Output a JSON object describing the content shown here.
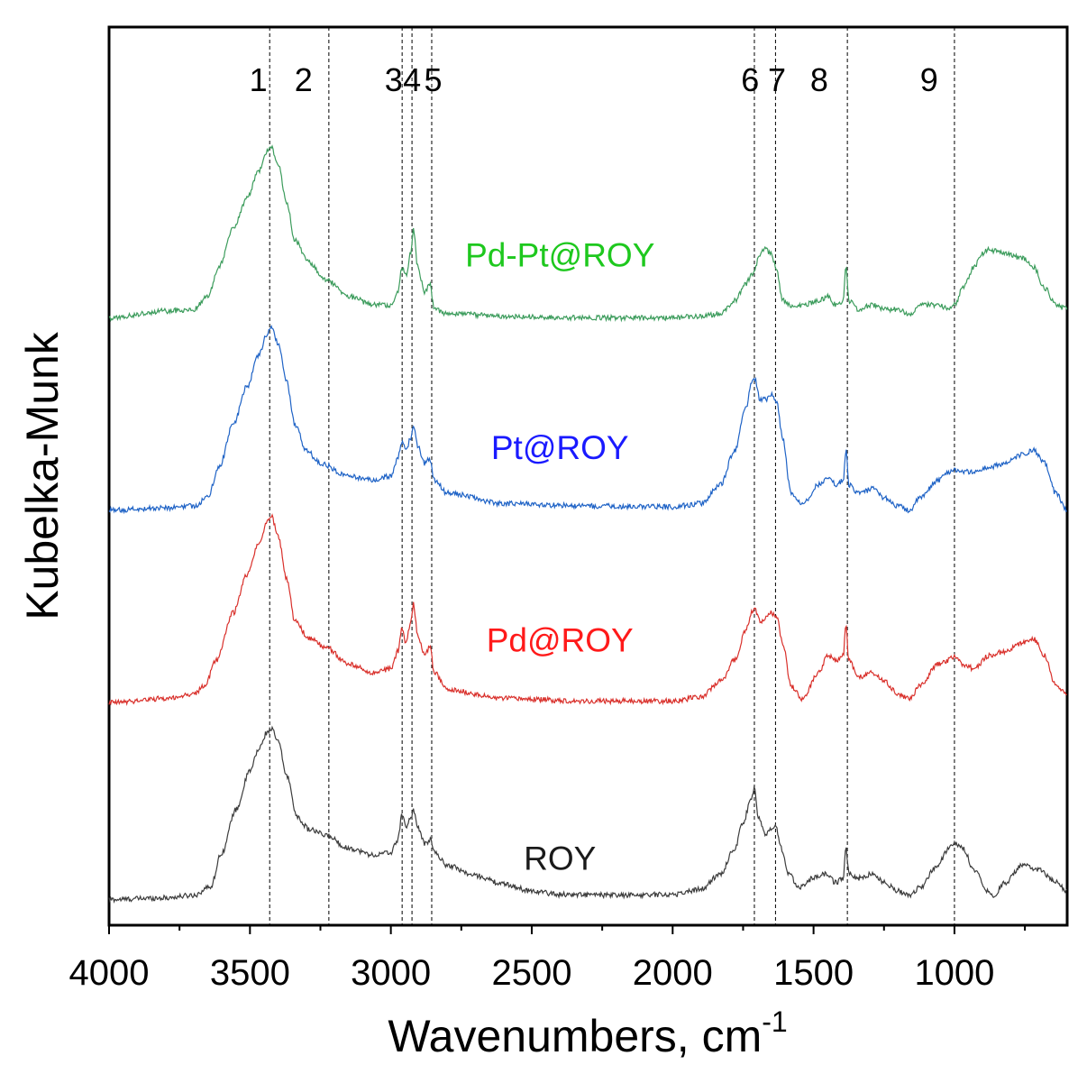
{
  "chart_data": {
    "type": "line",
    "title": "",
    "xlabel": "Wavenumbers, cm",
    "xlabel_superscript": "-1",
    "ylabel": "Kubelka-Munk",
    "xlim": [
      4000,
      600
    ],
    "x_reversed": true,
    "y_ticks": false,
    "xticks": [
      4000,
      3500,
      3000,
      2500,
      2000,
      1500,
      1000
    ],
    "xtick_labels": [
      "4000",
      "3500",
      "3000",
      "2500",
      "2000",
      "1500",
      "1000"
    ],
    "reference_lines": [
      {
        "label": "1",
        "x": 3430
      },
      {
        "label": "2",
        "x": 3220
      },
      {
        "label": "3",
        "x": 2960
      },
      {
        "label": "4",
        "x": 2925
      },
      {
        "label": "5",
        "x": 2855
      },
      {
        "label": "6",
        "x": 1710
      },
      {
        "label": "7",
        "x": 1635
      },
      {
        "label": "8",
        "x": 1380
      },
      {
        "label": "9",
        "x": 1000
      }
    ],
    "reference_label_x": {
      "1": 3470,
      "2": 3310,
      "3": 2990,
      "4": 2925,
      "5": 2850,
      "6": 1725,
      "7": 1630,
      "8": 1480,
      "9": 1090
    },
    "ylim": [
      0,
      10.5
    ],
    "series": [
      {
        "name": "ROY",
        "color": "#3c3c3c",
        "offset": 0.3,
        "points": [
          [
            4000,
            0.0
          ],
          [
            3800,
            0.02
          ],
          [
            3700,
            0.05
          ],
          [
            3640,
            0.15
          ],
          [
            3600,
            0.55
          ],
          [
            3550,
            1.05
          ],
          [
            3500,
            1.5
          ],
          [
            3470,
            1.75
          ],
          [
            3440,
            1.95
          ],
          [
            3425,
            2.0
          ],
          [
            3400,
            1.85
          ],
          [
            3370,
            1.45
          ],
          [
            3330,
            0.95
          ],
          [
            3290,
            0.82
          ],
          [
            3230,
            0.75
          ],
          [
            3150,
            0.6
          ],
          [
            3060,
            0.52
          ],
          [
            3000,
            0.55
          ],
          [
            2975,
            0.7
          ],
          [
            2960,
            1.0
          ],
          [
            2945,
            0.85
          ],
          [
            2930,
            0.95
          ],
          [
            2920,
            1.05
          ],
          [
            2905,
            0.85
          ],
          [
            2880,
            0.65
          ],
          [
            2860,
            0.7
          ],
          [
            2845,
            0.55
          ],
          [
            2800,
            0.4
          ],
          [
            2700,
            0.28
          ],
          [
            2600,
            0.18
          ],
          [
            2500,
            0.1
          ],
          [
            2400,
            0.06
          ],
          [
            2200,
            0.05
          ],
          [
            2000,
            0.06
          ],
          [
            1900,
            0.12
          ],
          [
            1830,
            0.3
          ],
          [
            1780,
            0.6
          ],
          [
            1750,
            0.9
          ],
          [
            1720,
            1.2
          ],
          [
            1710,
            1.3
          ],
          [
            1695,
            0.95
          ],
          [
            1670,
            0.75
          ],
          [
            1650,
            0.82
          ],
          [
            1635,
            0.85
          ],
          [
            1615,
            0.6
          ],
          [
            1590,
            0.3
          ],
          [
            1550,
            0.15
          ],
          [
            1500,
            0.25
          ],
          [
            1460,
            0.3
          ],
          [
            1420,
            0.2
          ],
          [
            1395,
            0.25
          ],
          [
            1385,
            0.6
          ],
          [
            1375,
            0.3
          ],
          [
            1340,
            0.25
          ],
          [
            1290,
            0.3
          ],
          [
            1250,
            0.2
          ],
          [
            1200,
            0.1
          ],
          [
            1160,
            0.05
          ],
          [
            1120,
            0.15
          ],
          [
            1060,
            0.4
          ],
          [
            1020,
            0.6
          ],
          [
            1000,
            0.65
          ],
          [
            970,
            0.6
          ],
          [
            930,
            0.35
          ],
          [
            880,
            0.1
          ],
          [
            860,
            0.05
          ],
          [
            820,
            0.2
          ],
          [
            760,
            0.4
          ],
          [
            700,
            0.35
          ],
          [
            640,
            0.2
          ],
          [
            600,
            0.1
          ]
        ]
      },
      {
        "name": "Pd@ROY",
        "color": "#d9302b",
        "offset": 2.6,
        "points": [
          [
            4000,
            0.0
          ],
          [
            3800,
            0.05
          ],
          [
            3700,
            0.1
          ],
          [
            3660,
            0.2
          ],
          [
            3620,
            0.5
          ],
          [
            3560,
            1.05
          ],
          [
            3510,
            1.5
          ],
          [
            3470,
            1.85
          ],
          [
            3440,
            2.1
          ],
          [
            3425,
            2.2
          ],
          [
            3400,
            1.95
          ],
          [
            3370,
            1.45
          ],
          [
            3340,
            0.95
          ],
          [
            3290,
            0.75
          ],
          [
            3230,
            0.65
          ],
          [
            3150,
            0.45
          ],
          [
            3060,
            0.35
          ],
          [
            3000,
            0.4
          ],
          [
            2975,
            0.6
          ],
          [
            2962,
            0.85
          ],
          [
            2945,
            0.7
          ],
          [
            2930,
            0.95
          ],
          [
            2920,
            1.15
          ],
          [
            2905,
            0.8
          ],
          [
            2880,
            0.55
          ],
          [
            2862,
            0.65
          ],
          [
            2845,
            0.35
          ],
          [
            2800,
            0.15
          ],
          [
            2600,
            0.05
          ],
          [
            2300,
            0.02
          ],
          [
            2000,
            0.02
          ],
          [
            1900,
            0.07
          ],
          [
            1830,
            0.25
          ],
          [
            1780,
            0.5
          ],
          [
            1740,
            0.85
          ],
          [
            1720,
            1.05
          ],
          [
            1710,
            1.1
          ],
          [
            1690,
            0.95
          ],
          [
            1670,
            1.0
          ],
          [
            1650,
            1.05
          ],
          [
            1630,
            1.0
          ],
          [
            1610,
            0.7
          ],
          [
            1580,
            0.2
          ],
          [
            1540,
            0.05
          ],
          [
            1480,
            0.35
          ],
          [
            1450,
            0.55
          ],
          [
            1420,
            0.5
          ],
          [
            1395,
            0.55
          ],
          [
            1385,
            0.9
          ],
          [
            1375,
            0.5
          ],
          [
            1340,
            0.3
          ],
          [
            1290,
            0.35
          ],
          [
            1250,
            0.25
          ],
          [
            1200,
            0.1
          ],
          [
            1160,
            0.05
          ],
          [
            1120,
            0.2
          ],
          [
            1060,
            0.45
          ],
          [
            1020,
            0.5
          ],
          [
            1000,
            0.55
          ],
          [
            970,
            0.45
          ],
          [
            930,
            0.4
          ],
          [
            880,
            0.55
          ],
          [
            820,
            0.6
          ],
          [
            760,
            0.7
          ],
          [
            720,
            0.75
          ],
          [
            680,
            0.55
          ],
          [
            640,
            0.2
          ],
          [
            600,
            0.1
          ]
        ]
      },
      {
        "name": "Pt@ROY",
        "color": "#1f63c6",
        "offset": 4.85,
        "points": [
          [
            4000,
            0.0
          ],
          [
            3800,
            0.03
          ],
          [
            3700,
            0.05
          ],
          [
            3650,
            0.15
          ],
          [
            3610,
            0.5
          ],
          [
            3560,
            1.0
          ],
          [
            3510,
            1.45
          ],
          [
            3470,
            1.8
          ],
          [
            3440,
            2.05
          ],
          [
            3425,
            2.15
          ],
          [
            3400,
            1.95
          ],
          [
            3370,
            1.5
          ],
          [
            3340,
            1.0
          ],
          [
            3300,
            0.7
          ],
          [
            3250,
            0.55
          ],
          [
            3150,
            0.4
          ],
          [
            3060,
            0.35
          ],
          [
            3000,
            0.4
          ],
          [
            2975,
            0.6
          ],
          [
            2962,
            0.8
          ],
          [
            2945,
            0.7
          ],
          [
            2930,
            0.85
          ],
          [
            2920,
            1.0
          ],
          [
            2905,
            0.75
          ],
          [
            2880,
            0.55
          ],
          [
            2862,
            0.6
          ],
          [
            2845,
            0.35
          ],
          [
            2800,
            0.2
          ],
          [
            2600,
            0.08
          ],
          [
            2300,
            0.05
          ],
          [
            2000,
            0.04
          ],
          [
            1900,
            0.08
          ],
          [
            1830,
            0.3
          ],
          [
            1780,
            0.7
          ],
          [
            1740,
            1.2
          ],
          [
            1720,
            1.5
          ],
          [
            1710,
            1.55
          ],
          [
            1690,
            1.3
          ],
          [
            1670,
            1.3
          ],
          [
            1650,
            1.35
          ],
          [
            1630,
            1.25
          ],
          [
            1610,
            0.85
          ],
          [
            1580,
            0.2
          ],
          [
            1540,
            0.08
          ],
          [
            1480,
            0.3
          ],
          [
            1450,
            0.4
          ],
          [
            1420,
            0.3
          ],
          [
            1395,
            0.35
          ],
          [
            1385,
            0.7
          ],
          [
            1375,
            0.3
          ],
          [
            1340,
            0.2
          ],
          [
            1290,
            0.25
          ],
          [
            1250,
            0.15
          ],
          [
            1200,
            0.05
          ],
          [
            1160,
            0.0
          ],
          [
            1120,
            0.15
          ],
          [
            1060,
            0.35
          ],
          [
            1020,
            0.45
          ],
          [
            1000,
            0.48
          ],
          [
            970,
            0.45
          ],
          [
            930,
            0.45
          ],
          [
            880,
            0.5
          ],
          [
            820,
            0.55
          ],
          [
            760,
            0.65
          ],
          [
            720,
            0.7
          ],
          [
            680,
            0.55
          ],
          [
            640,
            0.2
          ],
          [
            600,
            0.0
          ]
        ]
      },
      {
        "name": "Pd-Pt@ROY",
        "color": "#3c9c5c",
        "offset": 7.1,
        "points": [
          [
            4000,
            0.0
          ],
          [
            3800,
            0.08
          ],
          [
            3700,
            0.1
          ],
          [
            3650,
            0.25
          ],
          [
            3610,
            0.6
          ],
          [
            3560,
            1.05
          ],
          [
            3510,
            1.4
          ],
          [
            3470,
            1.7
          ],
          [
            3440,
            1.95
          ],
          [
            3425,
            2.0
          ],
          [
            3400,
            1.8
          ],
          [
            3370,
            1.35
          ],
          [
            3340,
            0.9
          ],
          [
            3290,
            0.65
          ],
          [
            3230,
            0.45
          ],
          [
            3150,
            0.25
          ],
          [
            3060,
            0.15
          ],
          [
            3000,
            0.15
          ],
          [
            2975,
            0.3
          ],
          [
            2962,
            0.6
          ],
          [
            2945,
            0.5
          ],
          [
            2930,
            0.75
          ],
          [
            2920,
            1.05
          ],
          [
            2905,
            0.6
          ],
          [
            2880,
            0.3
          ],
          [
            2862,
            0.4
          ],
          [
            2845,
            0.1
          ],
          [
            2800,
            0.05
          ],
          [
            2600,
            0.02
          ],
          [
            2300,
            0.0
          ],
          [
            2000,
            0.0
          ],
          [
            1900,
            0.02
          ],
          [
            1830,
            0.05
          ],
          [
            1780,
            0.2
          ],
          [
            1740,
            0.4
          ],
          [
            1720,
            0.5
          ],
          [
            1710,
            0.55
          ],
          [
            1690,
            0.75
          ],
          [
            1670,
            0.8
          ],
          [
            1650,
            0.75
          ],
          [
            1630,
            0.55
          ],
          [
            1610,
            0.2
          ],
          [
            1580,
            0.15
          ],
          [
            1540,
            0.15
          ],
          [
            1480,
            0.2
          ],
          [
            1450,
            0.25
          ],
          [
            1420,
            0.15
          ],
          [
            1395,
            0.2
          ],
          [
            1385,
            0.6
          ],
          [
            1375,
            0.2
          ],
          [
            1340,
            0.1
          ],
          [
            1290,
            0.15
          ],
          [
            1250,
            0.1
          ],
          [
            1200,
            0.1
          ],
          [
            1160,
            0.05
          ],
          [
            1120,
            0.15
          ],
          [
            1060,
            0.15
          ],
          [
            1020,
            0.1
          ],
          [
            1000,
            0.15
          ],
          [
            970,
            0.35
          ],
          [
            930,
            0.6
          ],
          [
            900,
            0.75
          ],
          [
            880,
            0.8
          ],
          [
            820,
            0.75
          ],
          [
            760,
            0.7
          ],
          [
            720,
            0.6
          ],
          [
            680,
            0.35
          ],
          [
            640,
            0.15
          ],
          [
            600,
            0.1
          ]
        ]
      }
    ],
    "series_label_positions": {
      "ROY": {
        "x": 2400,
        "y": 0.65
      },
      "Pd@ROY": {
        "x": 2400,
        "y": 3.2
      },
      "Pt@ROY": {
        "x": 2400,
        "y": 5.45
      },
      "Pd-Pt@ROY": {
        "x": 2400,
        "y": 7.7
      }
    },
    "series_label_colors": {
      "ROY": "#1a1a1a",
      "Pd@ROY": "#ff1a1a",
      "Pt@ROY": "#1a1aff",
      "Pd-Pt@ROY": "#1ec81e"
    }
  }
}
